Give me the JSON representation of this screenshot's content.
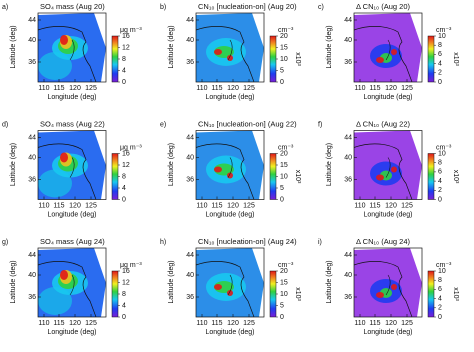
{
  "axes": {
    "xlabel": "Longitude (deg)",
    "ylabel": "Latitude (deg)",
    "xticks": [
      "110",
      "115",
      "120",
      "125"
    ],
    "yticks": [
      "44",
      "40",
      "36"
    ]
  },
  "panels": [
    {
      "label": "a)",
      "title": "SO₄ mass (Aug 20)",
      "unit": "μg m⁻³",
      "colorbar_ticks": [
        "16",
        "12",
        "8",
        "4",
        "0"
      ]
    },
    {
      "label": "b)",
      "title": "CN₁₀ [nucleation-on] (Aug 20)",
      "unit": "cm⁻³",
      "scale": "x10³",
      "colorbar_ticks": [
        "20",
        "15",
        "10",
        "5",
        "0"
      ]
    },
    {
      "label": "c)",
      "title": "Δ CN₁₀ (Aug 20)",
      "unit": "cm⁻³",
      "scale": "x10³",
      "colorbar_ticks": [
        "10",
        "8",
        "6",
        "4",
        "2",
        "0"
      ]
    },
    {
      "label": "d)",
      "title": "SO₄ mass (Aug 22)",
      "unit": "μg m⁻³",
      "colorbar_ticks": [
        "16",
        "12",
        "8",
        "4",
        "0"
      ]
    },
    {
      "label": "e)",
      "title": "CN₁₀ [nucleation-on] (Aug 22)",
      "unit": "cm⁻³",
      "scale": "x10³",
      "colorbar_ticks": [
        "20",
        "15",
        "10",
        "5",
        "0"
      ]
    },
    {
      "label": "f)",
      "title": "Δ CN₁₀ (Aug 22)",
      "unit": "cm⁻³",
      "scale": "x10³",
      "colorbar_ticks": [
        "10",
        "8",
        "6",
        "4",
        "2",
        "0"
      ]
    },
    {
      "label": "g)",
      "title": "SO₄ mass (Aug 24)",
      "unit": "μg m⁻³",
      "colorbar_ticks": [
        "16",
        "12",
        "8",
        "4",
        "0"
      ]
    },
    {
      "label": "h)",
      "title": "CN₁₀ [nucleation-on] (Aug 24)",
      "unit": "cm⁻³",
      "scale": "x10³",
      "colorbar_ticks": [
        "20",
        "15",
        "10",
        "5",
        "0"
      ]
    },
    {
      "label": "i)",
      "title": "Δ CN₁₀ (Aug 24)",
      "unit": "cm⁻³",
      "scale": "x10³",
      "colorbar_ticks": [
        "10",
        "8",
        "6",
        "4",
        "2",
        "0"
      ]
    }
  ]
}
